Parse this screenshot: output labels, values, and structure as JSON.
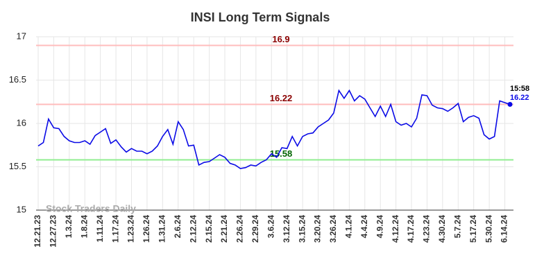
{
  "chart_data": {
    "type": "line",
    "title": "INSI Long Term Signals",
    "categories": [
      "12.21.23",
      null,
      null,
      "12.27.23",
      null,
      null,
      "1.3.24",
      null,
      null,
      "1.8.24",
      null,
      null,
      "1.11.24",
      null,
      null,
      "1.17.24",
      null,
      null,
      "1.23.24",
      null,
      null,
      "1.26.24",
      null,
      null,
      "1.31.24",
      null,
      null,
      "2.6.24",
      null,
      null,
      "2.12.24",
      null,
      null,
      "2.15.24",
      null,
      null,
      "2.21.24",
      null,
      null,
      "2.26.24",
      null,
      null,
      "2.29.24",
      null,
      null,
      "3.6.24",
      null,
      null,
      "3.12.24",
      null,
      null,
      "3.15.24",
      null,
      null,
      "3.20.24",
      null,
      null,
      "3.26.24",
      null,
      null,
      "4.1.24",
      null,
      null,
      "4.4.24",
      null,
      null,
      "4.9.24",
      null,
      null,
      "4.12.24",
      null,
      null,
      "4.17.24",
      null,
      null,
      "4.23.24",
      null,
      null,
      "4.30.24",
      null,
      null,
      "5.7.24",
      null,
      null,
      "5.17.24",
      null,
      null,
      "5.30.24",
      null,
      null,
      "6.14.24",
      null
    ],
    "values": [
      15.74,
      15.78,
      16.05,
      15.95,
      15.94,
      15.85,
      15.8,
      15.78,
      15.78,
      15.8,
      15.76,
      15.86,
      15.9,
      15.94,
      15.77,
      15.81,
      15.73,
      15.67,
      15.71,
      15.68,
      15.68,
      15.65,
      15.68,
      15.74,
      15.85,
      15.93,
      15.76,
      16.02,
      15.93,
      15.74,
      15.75,
      15.52,
      15.55,
      15.56,
      15.6,
      15.64,
      15.61,
      15.54,
      15.52,
      15.48,
      15.49,
      15.52,
      15.51,
      15.55,
      15.58,
      15.65,
      15.61,
      15.72,
      15.71,
      15.85,
      15.74,
      15.85,
      15.88,
      15.89,
      15.96,
      16.0,
      16.04,
      16.12,
      16.38,
      16.29,
      16.38,
      16.26,
      16.32,
      16.28,
      16.18,
      16.08,
      16.2,
      16.08,
      16.22,
      16.02,
      15.98,
      16.0,
      15.96,
      16.06,
      16.33,
      16.32,
      16.21,
      16.18,
      16.17,
      16.14,
      16.18,
      16.23,
      16.02,
      16.07,
      16.09,
      16.06,
      15.87,
      15.82,
      15.85,
      16.26,
      16.24,
      16.22
    ],
    "color": "#0a0ae6",
    "ylim": [
      15,
      17
    ],
    "yticks": [
      15,
      15.5,
      16,
      16.5,
      17
    ],
    "grid": true,
    "hlines": [
      {
        "value": 16.9,
        "color": "#ffbcbc",
        "label_color": "#8b0000"
      },
      {
        "value": 16.22,
        "color": "#ffbcbc",
        "label_color": "#8b0000"
      },
      {
        "value": 15.58,
        "color": "#90ee90",
        "label_color": "#006400"
      }
    ],
    "last_time": "15:58",
    "watermark": "Stock Traders Daily"
  }
}
